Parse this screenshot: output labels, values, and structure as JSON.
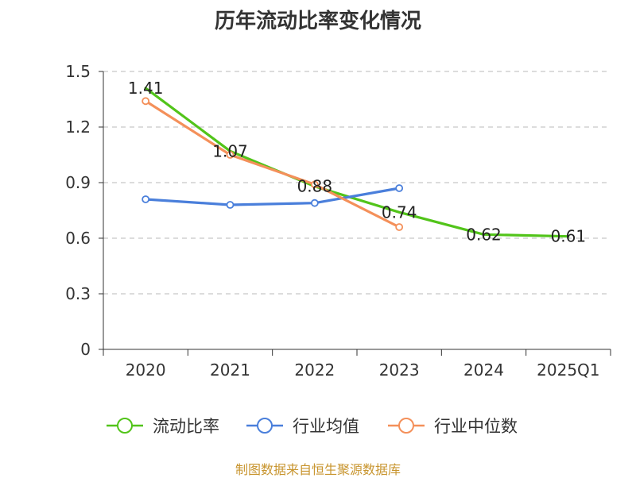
{
  "title": "历年流动比率变化情况",
  "source": "制图数据来自恒生聚源数据库",
  "chart_data": {
    "type": "line",
    "categories": [
      "2020",
      "2021",
      "2022",
      "2023",
      "2024",
      "2025Q1"
    ],
    "ylim": [
      0,
      1.5
    ],
    "yticks": [
      "0",
      "0.3",
      "0.6",
      "0.9",
      "1.2",
      "1.5"
    ],
    "grid": true,
    "legend_position": "bottom",
    "series": [
      {
        "name": "流动比率",
        "color": "#52c41a",
        "values": [
          1.41,
          1.07,
          0.88,
          0.74,
          0.62,
          0.61
        ],
        "labels": [
          "1.41",
          "1.07",
          "0.88",
          "0.74",
          "0.62",
          "0.61"
        ],
        "markers": false
      },
      {
        "name": "行业均值",
        "color": "#4a7fdb",
        "values": [
          0.81,
          0.78,
          0.79,
          0.87,
          null,
          null
        ],
        "markers": true
      },
      {
        "name": "行业中位数",
        "color": "#f4905a",
        "values": [
          1.34,
          1.05,
          0.89,
          0.66,
          null,
          null
        ],
        "markers": true
      }
    ]
  }
}
